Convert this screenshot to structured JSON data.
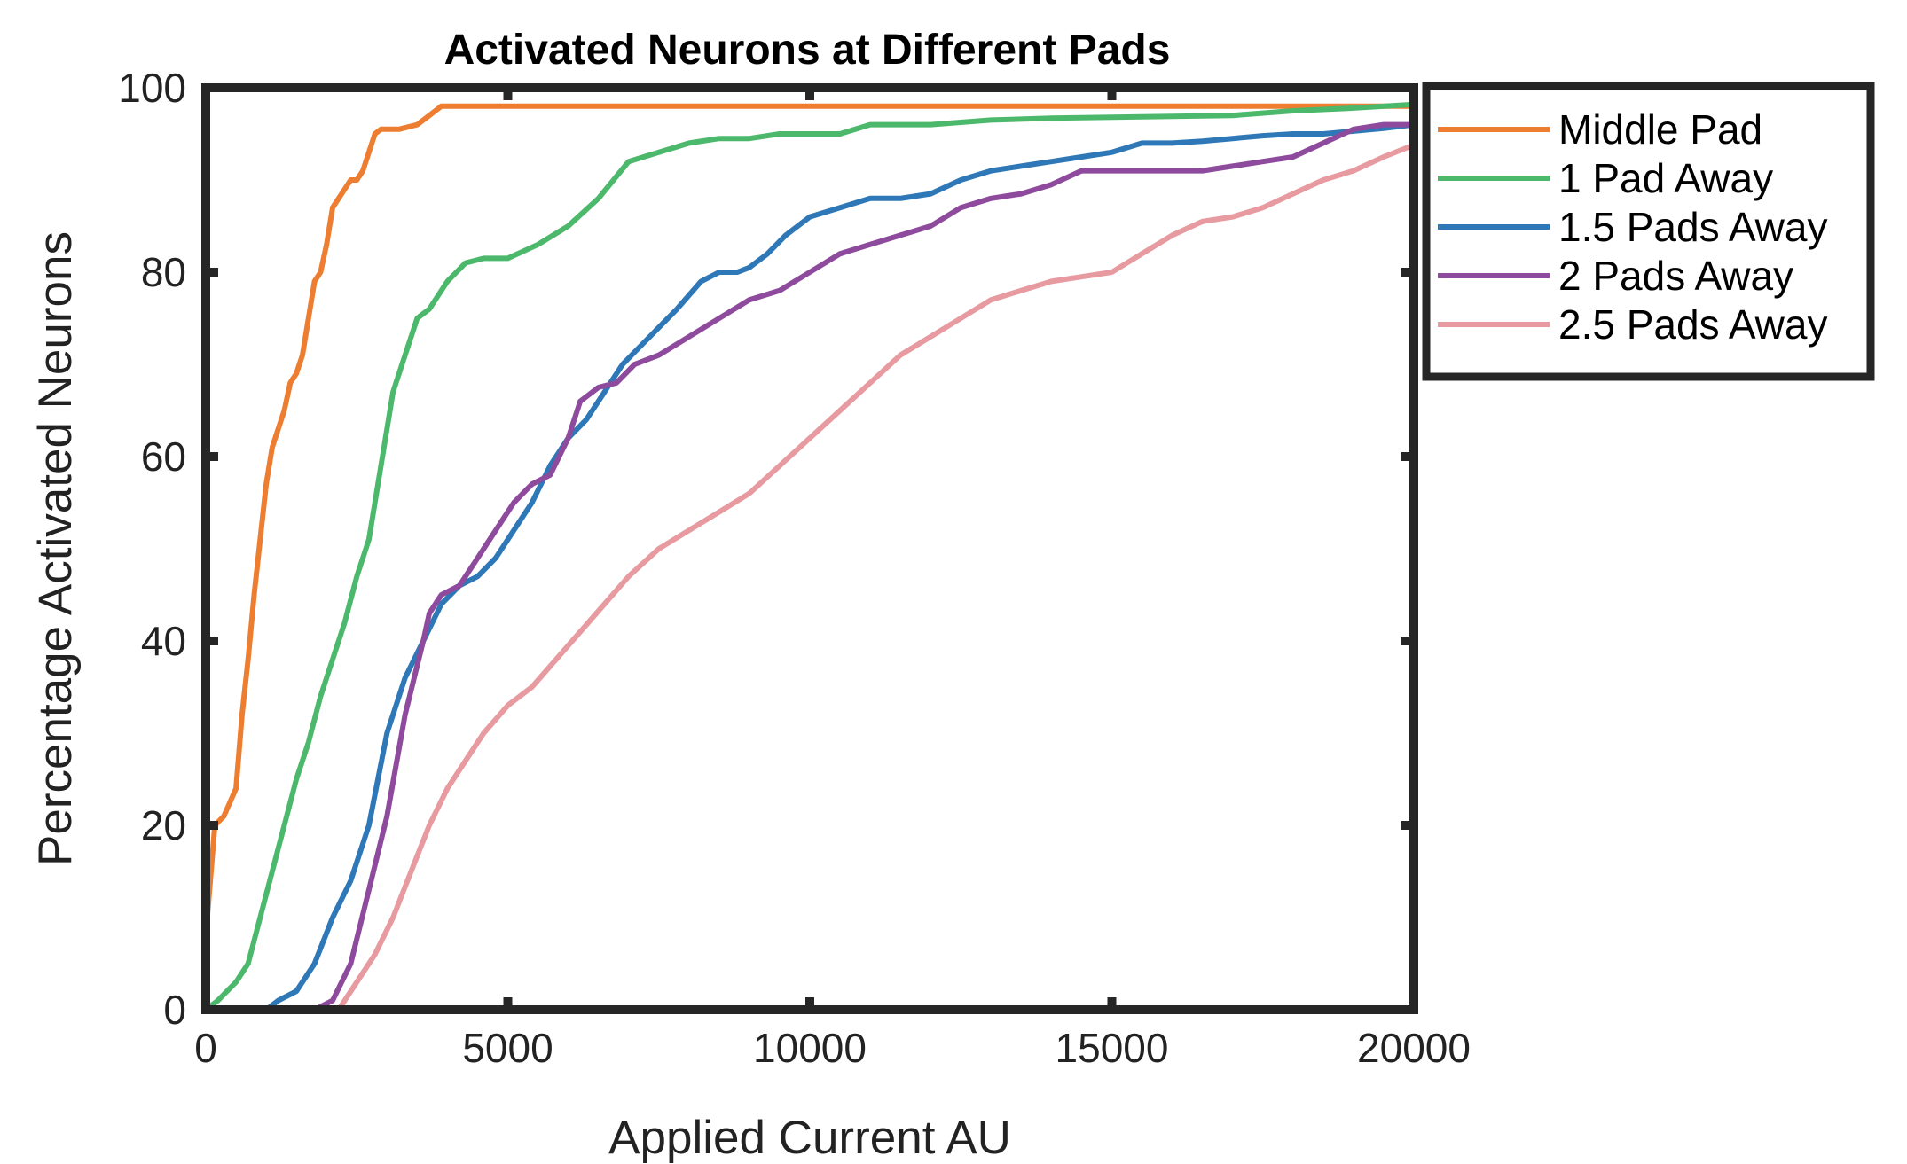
{
  "chart_data": {
    "type": "line",
    "title": "Activated Neurons at Different Pads",
    "xlabel": "Applied Current AU",
    "ylabel": "Percentage Activated Neurons",
    "xlim": [
      0,
      20000
    ],
    "ylim": [
      0,
      100
    ],
    "xticks": [
      "0",
      "5000",
      "10000",
      "15000",
      "20000"
    ],
    "yticks": [
      "0",
      "20",
      "40",
      "60",
      "80",
      "100"
    ],
    "grid": false,
    "legend_position": "outside-top-right",
    "series": [
      {
        "name": "Middle Pad",
        "color": "#ed7d31",
        "x": [
          0,
          150,
          300,
          500,
          600,
          700,
          800,
          900,
          1000,
          1100,
          1200,
          1300,
          1400,
          1500,
          1600,
          1700,
          1800,
          1900,
          2000,
          2100,
          2200,
          2300,
          2400,
          2500,
          2600,
          2700,
          2800,
          2900,
          3000,
          3200,
          3500,
          3700,
          3900,
          4000,
          5000,
          10000,
          15000,
          20000
        ],
        "y": [
          8,
          20,
          21,
          24,
          32,
          38,
          45,
          51,
          57,
          61,
          63,
          65,
          68,
          69,
          71,
          75,
          79,
          80,
          83,
          87,
          88,
          89,
          90,
          90,
          91,
          93,
          95,
          95.5,
          95.5,
          95.5,
          96,
          97,
          98,
          98,
          98,
          98,
          98,
          98
        ]
      },
      {
        "name": "1 Pad Away",
        "color": "#4cb86b",
        "x": [
          0,
          200,
          500,
          700,
          900,
          1100,
          1300,
          1500,
          1700,
          1900,
          2100,
          2300,
          2500,
          2700,
          2900,
          3100,
          3300,
          3500,
          3700,
          4000,
          4300,
          4600,
          5000,
          5500,
          6000,
          6500,
          7000,
          7500,
          8000,
          8500,
          9000,
          9500,
          10000,
          10500,
          11000,
          12000,
          13000,
          14000,
          15000,
          16000,
          17000,
          18000,
          19000,
          20000
        ],
        "y": [
          0,
          1,
          3,
          5,
          10,
          15,
          20,
          25,
          29,
          34,
          38,
          42,
          47,
          51,
          59,
          67,
          71,
          75,
          76,
          79,
          81,
          81.5,
          81.5,
          83,
          85,
          88,
          92,
          93,
          94,
          94.5,
          94.5,
          95,
          95,
          95,
          96,
          96,
          96.5,
          96.7,
          96.8,
          96.9,
          97,
          97.5,
          97.8,
          98.2
        ]
      },
      {
        "name": "1.5 Pads Away",
        "color": "#2e78b8",
        "x": [
          0,
          1000,
          1200,
          1500,
          1800,
          2100,
          2400,
          2700,
          3000,
          3300,
          3600,
          3900,
          4200,
          4500,
          4800,
          5100,
          5400,
          5700,
          6000,
          6300,
          6600,
          6900,
          7200,
          7500,
          7800,
          8200,
          8500,
          8800,
          9000,
          9300,
          9600,
          10000,
          10500,
          11000,
          11500,
          12000,
          12500,
          13000,
          13500,
          14000,
          14500,
          15000,
          15500,
          16000,
          16500,
          17000,
          17500,
          18000,
          18500,
          19000,
          19500,
          20000
        ],
        "y": [
          0,
          0,
          1,
          2,
          5,
          10,
          14,
          20,
          30,
          36,
          40,
          44,
          46,
          47,
          49,
          52,
          55,
          59,
          62,
          64,
          67,
          70,
          72,
          74,
          76,
          79,
          80,
          80,
          80.5,
          82,
          84,
          86,
          87,
          88,
          88,
          88.5,
          90,
          91,
          91.5,
          92,
          92.5,
          93,
          94,
          94,
          94.2,
          94.5,
          94.8,
          95,
          95,
          95.3,
          95.6,
          96
        ]
      },
      {
        "name": "2 Pads Away",
        "color": "#8e4a9c",
        "x": [
          0,
          1800,
          2100,
          2400,
          2700,
          3000,
          3300,
          3600,
          3700,
          3900,
          4200,
          4500,
          4800,
          5100,
          5400,
          5700,
          6000,
          6200,
          6500,
          6800,
          7100,
          7500,
          8000,
          8500,
          9000,
          9500,
          10000,
          10500,
          11000,
          11500,
          12000,
          12500,
          13000,
          13500,
          14000,
          14500,
          15000,
          15500,
          16000,
          16500,
          17000,
          17500,
          18000,
          18500,
          19000,
          19500,
          20000
        ],
        "y": [
          0,
          0,
          1,
          5,
          13,
          21,
          32,
          40,
          43,
          45,
          46,
          49,
          52,
          55,
          57,
          58,
          62,
          66,
          67.5,
          68,
          70,
          71,
          73,
          75,
          77,
          78,
          80,
          82,
          83,
          84,
          85,
          87,
          88,
          88.5,
          89.5,
          91,
          91,
          91,
          91,
          91,
          91.5,
          92,
          92.5,
          94,
          95.5,
          96,
          96
        ]
      },
      {
        "name": "2.5 Pads Away",
        "color": "#e79a9f",
        "x": [
          0,
          2200,
          2500,
          2800,
          3100,
          3400,
          3700,
          4000,
          4300,
          4600,
          5000,
          5400,
          5800,
          6200,
          6600,
          7000,
          7500,
          8000,
          8500,
          9000,
          9500,
          10000,
          10500,
          11000,
          11500,
          12000,
          12500,
          13000,
          13500,
          14000,
          14500,
          15000,
          15500,
          16000,
          16500,
          17000,
          17500,
          18000,
          18500,
          19000,
          19500,
          20000
        ],
        "y": [
          0,
          0,
          3,
          6,
          10,
          15,
          20,
          24,
          27,
          30,
          33,
          35,
          38,
          41,
          44,
          47,
          50,
          52,
          54,
          56,
          59,
          62,
          65,
          68,
          71,
          73,
          75,
          77,
          78,
          79,
          79.5,
          80,
          82,
          84,
          85.5,
          86,
          87,
          88.5,
          90,
          91,
          92.5,
          93.8
        ]
      }
    ]
  }
}
